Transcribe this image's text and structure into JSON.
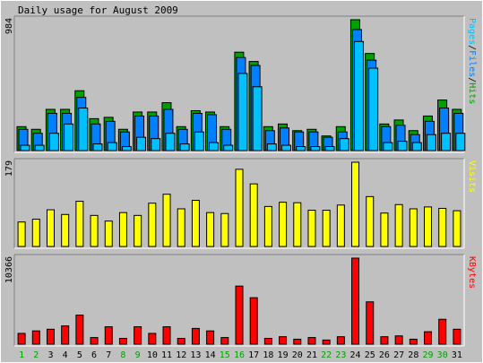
{
  "title": "Daily usage for August 2009",
  "colors": {
    "background": "#c0c0c0",
    "hits": "#00a000",
    "files": "#0080ff",
    "pages": "#00c0ff",
    "visits": "#ffff00",
    "kbytes": "#ff0000",
    "weekend_label": "#00a000",
    "weekday_label": "#000000"
  },
  "chart_data": [
    {
      "type": "bar",
      "ymax_label": "984",
      "legend": [
        "Pages",
        "Files",
        "Hits"
      ],
      "legend_separator": "/",
      "x": [
        1,
        2,
        3,
        4,
        5,
        6,
        7,
        8,
        9,
        10,
        11,
        12,
        13,
        14,
        15,
        16,
        17,
        18,
        19,
        20,
        21,
        22,
        23,
        24,
        25,
        26,
        27,
        28,
        29,
        30,
        31
      ],
      "x_labels": [
        "1",
        "2",
        "3",
        "4",
        "5",
        "6",
        "7",
        "8",
        "9",
        "10",
        "11",
        "12",
        "13",
        "14",
        "15",
        "16",
        "17",
        "18",
        "19",
        "20",
        "21",
        "22",
        "23",
        "24",
        "25",
        "26",
        "27",
        "28",
        "29",
        "30",
        "31"
      ],
      "weekend_days": [
        1,
        2,
        8,
        9,
        15,
        16,
        22,
        23,
        29,
        30
      ],
      "ylim": [
        0,
        984
      ],
      "series": [
        {
          "name": "Hits",
          "values": [
            180,
            160,
            310,
            310,
            450,
            240,
            250,
            160,
            290,
            290,
            360,
            180,
            300,
            290,
            180,
            740,
            670,
            180,
            200,
            150,
            160,
            110,
            180,
            984,
            730,
            200,
            230,
            150,
            260,
            380,
            310
          ]
        },
        {
          "name": "Files",
          "values": [
            160,
            130,
            280,
            280,
            400,
            200,
            220,
            140,
            260,
            260,
            310,
            160,
            280,
            270,
            160,
            700,
            640,
            150,
            170,
            140,
            140,
            100,
            140,
            910,
            680,
            180,
            190,
            120,
            220,
            320,
            280
          ]
        },
        {
          "name": "Pages",
          "values": [
            40,
            40,
            130,
            200,
            320,
            50,
            60,
            30,
            100,
            90,
            130,
            50,
            140,
            60,
            40,
            580,
            480,
            50,
            40,
            30,
            30,
            30,
            90,
            820,
            620,
            60,
            70,
            60,
            120,
            130,
            130
          ]
        }
      ]
    },
    {
      "type": "bar",
      "ymax_label": "179",
      "legend": [
        "Visits"
      ],
      "x": [
        1,
        2,
        3,
        4,
        5,
        6,
        7,
        8,
        9,
        10,
        11,
        12,
        13,
        14,
        15,
        16,
        17,
        18,
        19,
        20,
        21,
        22,
        23,
        24,
        25,
        26,
        27,
        28,
        29,
        30,
        31
      ],
      "ylim": [
        0,
        179
      ],
      "series": [
        {
          "name": "Visits",
          "values": [
            52,
            58,
            78,
            68,
            96,
            66,
            54,
            72,
            66,
            92,
            111,
            80,
            98,
            72,
            70,
            164,
            133,
            85,
            94,
            93,
            77,
            77,
            88,
            179,
            106,
            71,
            89,
            80,
            84,
            81,
            76
          ]
        }
      ]
    },
    {
      "type": "bar",
      "ymax_label": "10366",
      "legend": [
        "KBytes"
      ],
      "x": [
        1,
        2,
        3,
        4,
        5,
        6,
        7,
        8,
        9,
        10,
        11,
        12,
        13,
        14,
        15,
        16,
        17,
        18,
        19,
        20,
        21,
        22,
        23,
        24,
        25,
        26,
        27,
        28,
        29,
        30,
        31
      ],
      "ylim": [
        0,
        10366
      ],
      "series": [
        {
          "name": "KBytes",
          "values": [
            1300,
            1600,
            1800,
            2200,
            3500,
            800,
            2100,
            700,
            2100,
            1300,
            2100,
            700,
            1900,
            1600,
            800,
            7000,
            5600,
            700,
            900,
            600,
            800,
            500,
            900,
            10366,
            5100,
            900,
            1000,
            600,
            1500,
            3000,
            1800
          ]
        }
      ]
    }
  ]
}
